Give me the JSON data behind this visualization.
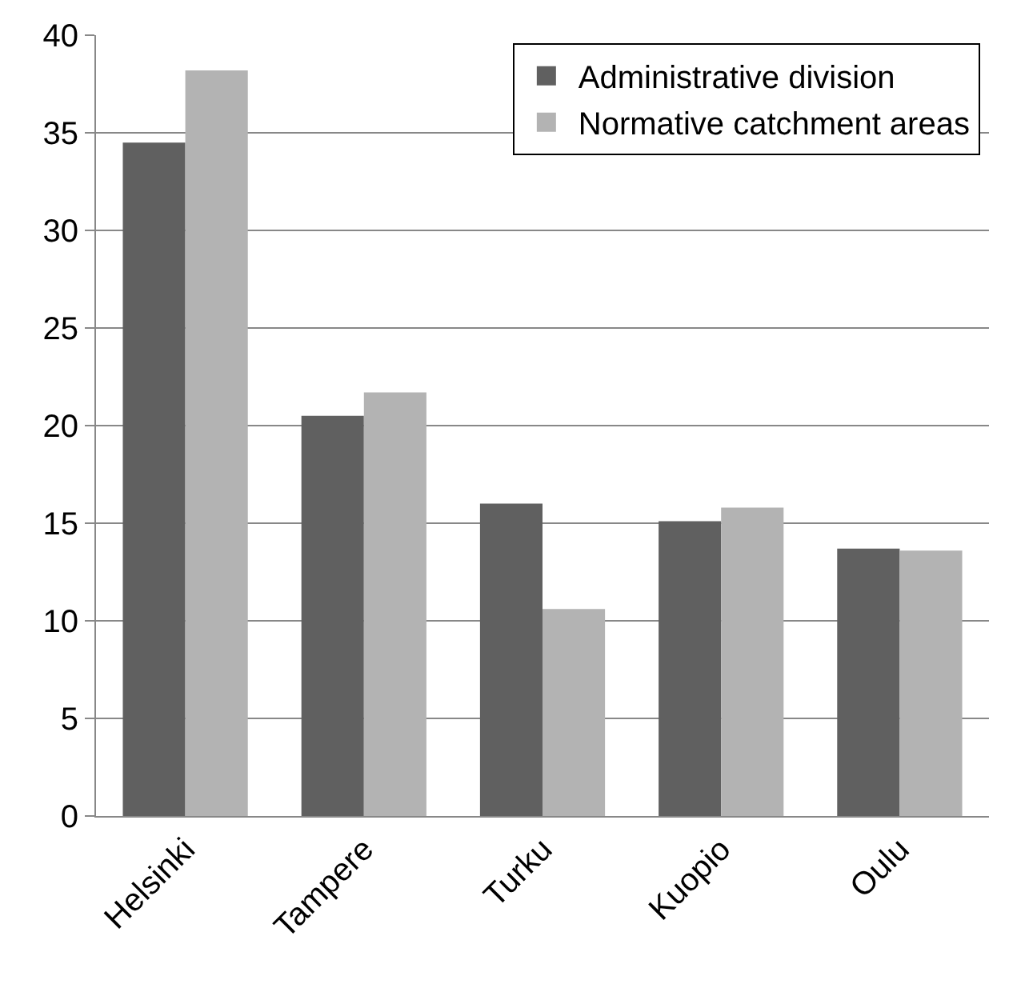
{
  "chart_data": {
    "type": "bar",
    "categories": [
      "Helsinki",
      "Tampere",
      "Turku",
      "Kuopio",
      "Oulu"
    ],
    "series": [
      {
        "name": "Administrative division",
        "color": "#606060",
        "values": [
          34.5,
          20.5,
          16.0,
          15.1,
          13.7
        ]
      },
      {
        "name": "Normative catchment areas",
        "color": "#b3b3b3",
        "values": [
          38.2,
          21.7,
          10.6,
          15.8,
          13.6
        ]
      }
    ],
    "ylim": [
      0,
      40
    ],
    "yticks": [
      0,
      5,
      10,
      15,
      20,
      25,
      30,
      35,
      40
    ],
    "grid": "y",
    "legend": "top right"
  }
}
